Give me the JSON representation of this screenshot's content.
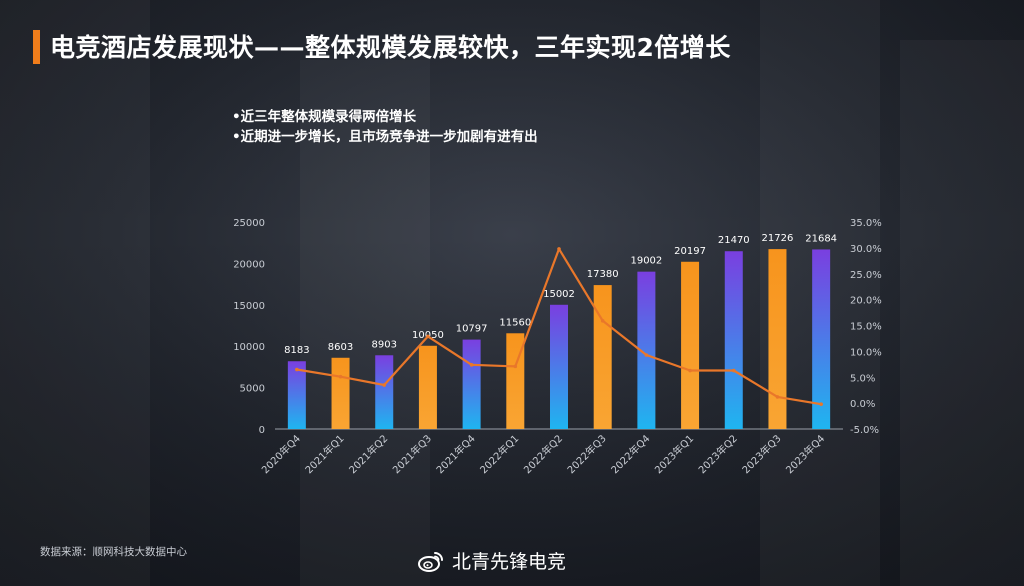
{
  "header": {
    "title": "电竞酒店发展现状——整体规模发展较快，三年实现2倍增长"
  },
  "bullets": [
    "•近三年整体规模录得两倍增长",
    "•近期进一步增长，且市场竞争进一步加剧有进有出"
  ],
  "chart_data": {
    "type": "bar",
    "categories": [
      "2020年Q4",
      "2021年Q1",
      "2021年Q2",
      "2021年Q3",
      "2021年Q4",
      "2022年Q1",
      "2022年Q2",
      "2022年Q3",
      "2022年Q4",
      "2023年Q1",
      "2023年Q2",
      "2023年Q3",
      "2023年Q4"
    ],
    "series": [
      {
        "type": "bar",
        "values": [
          8183,
          8603,
          8903,
          10050,
          10797,
          11560,
          15002,
          17380,
          19002,
          20197,
          21470,
          21726,
          21684
        ],
        "data_labels": [
          "8183",
          "8603",
          "8903",
          "10050",
          "10797",
          "11560",
          "15002",
          "17380",
          "19002",
          "20197",
          "21470",
          "21726",
          "21684"
        ],
        "colors": [
          "#7a3fe0",
          "#f7941d",
          "#7a3fe0",
          "#f7941d",
          "#7a3fe0",
          "#f7941d",
          "#7a3fe0",
          "#f7941d",
          "#7a3fe0",
          "#f7941d",
          "#7a3fe0",
          "#f7941d",
          "#7a3fe0"
        ]
      },
      {
        "type": "line",
        "axis": "right",
        "values": [
          6.5,
          5.1,
          3.5,
          12.9,
          7.4,
          7.1,
          29.8,
          15.9,
          9.3,
          6.3,
          6.3,
          1.2,
          -0.2
        ],
        "color": "#e9772a"
      }
    ],
    "y_left": {
      "min": 0,
      "max": 25000,
      "ticks": [
        "0",
        "5000",
        "10000",
        "15000",
        "20000",
        "25000"
      ]
    },
    "y_right": {
      "min": -5,
      "max": 35,
      "ticks": [
        "-5.0%",
        "0.0%",
        "5.0%",
        "10.0%",
        "15.0%",
        "20.0%",
        "25.0%",
        "30.0%",
        "35.0%"
      ]
    },
    "grid": false,
    "legend": "none",
    "colors": {
      "purple_top": "#7a3fe0",
      "orange_top": "#f7941d",
      "bar_bottom": "#1fb5f0",
      "line": "#e9772a",
      "axis_text": "#c8ccd3"
    }
  },
  "footer": {
    "source": "数据来源：顺网科技大数据中心",
    "brand": "北青先锋电竞",
    "brand_icon": "weibo-icon"
  }
}
